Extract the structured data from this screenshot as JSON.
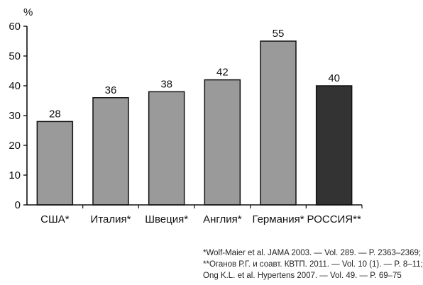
{
  "chart_data": {
    "type": "bar",
    "ylabel": "%",
    "ylim": [
      0,
      60
    ],
    "yticks": [
      0,
      10,
      20,
      30,
      40,
      50,
      60
    ],
    "grid": false,
    "categories": [
      "США*",
      "Италия*",
      "Швеция*",
      "Англия*",
      "Германия*",
      "РОССИЯ**"
    ],
    "values": [
      28,
      36,
      38,
      42,
      55,
      40
    ],
    "bar_colors": [
      "#9a9a9a",
      "#9a9a9a",
      "#9a9a9a",
      "#9a9a9a",
      "#9a9a9a",
      "#333333"
    ]
  },
  "footnotes": [
    "*Wolf-Maier et al. JAMA 2003. — Vol. 289. — P. 2363–2369;",
    "**Оганов Р.Г. и соавт. КВТП. 2011. — Vol. 10 (1). — P. 8–11;",
    "Ong K.L. et al. Hypertens 2007. — Vol. 49. — P. 69–75"
  ]
}
